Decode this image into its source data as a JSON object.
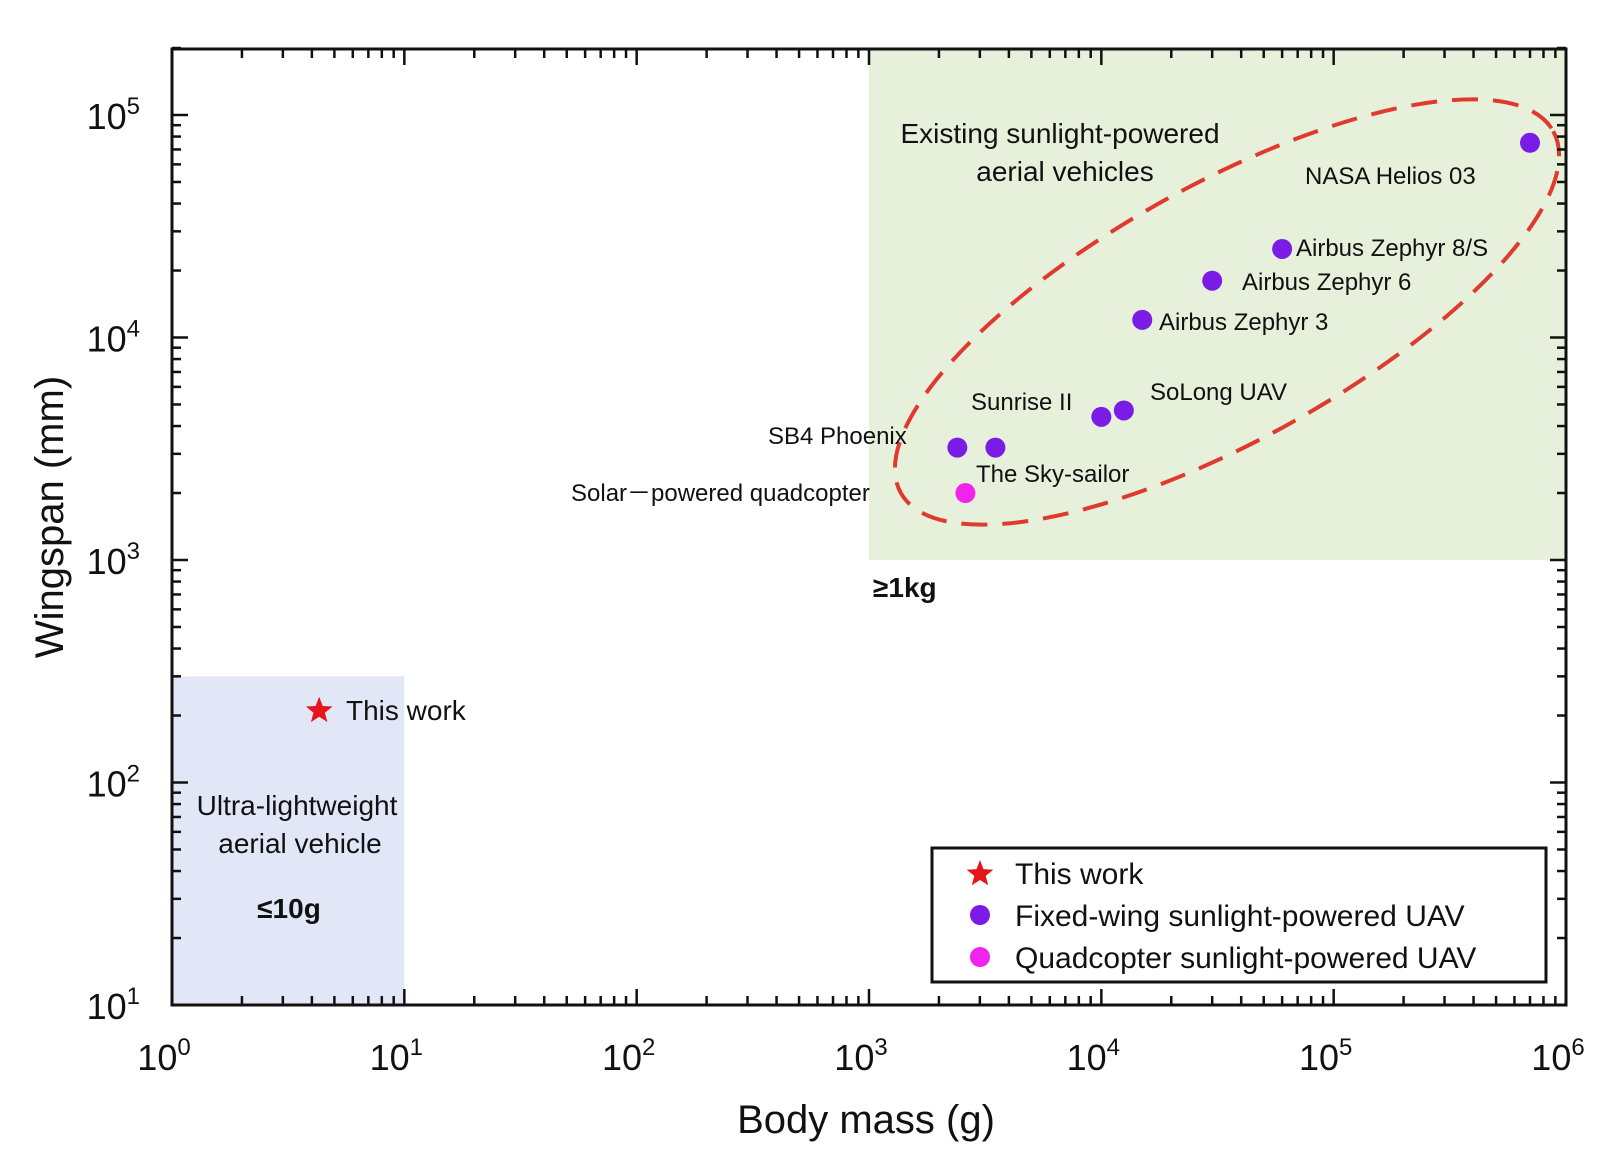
{
  "chart_data": {
    "type": "scatter",
    "x_scale": "log",
    "y_scale": "log",
    "xlim": [
      1,
      1000000
    ],
    "ylim": [
      10,
      200000
    ],
    "xlabel": "Body mass (g)",
    "ylabel": "Wingspan (mm)",
    "colors": {
      "this_work": "#e8141c",
      "fixed_wing": "#7a1ce6",
      "quadcopter": "#f024ea",
      "existing_region": "#e7f0da",
      "ultralight_region": "#e2e7f8",
      "ellipse": "#e03a2e"
    },
    "series": [
      {
        "name": "This work",
        "marker": "star",
        "points": [
          {
            "x": 4.3,
            "y": 210,
            "label": "This work"
          }
        ]
      },
      {
        "name": "Fixed-wing sunlight-powered UAV",
        "marker": "circle",
        "points": [
          {
            "x": 700000,
            "y": 75000,
            "label": "NASA Helios 03"
          },
          {
            "x": 60000,
            "y": 25000,
            "label": "Airbus Zephyr 8/S"
          },
          {
            "x": 30000,
            "y": 18000,
            "label": "Airbus Zephyr 6"
          },
          {
            "x": 15000,
            "y": 12000,
            "label": "Airbus Zephyr 3"
          },
          {
            "x": 12500,
            "y": 4700,
            "label": "SoLong UAV"
          },
          {
            "x": 10000,
            "y": 4400,
            "label": "Sunrise II"
          },
          {
            "x": 2400,
            "y": 3200,
            "label": "SB4 Phoenix"
          },
          {
            "x": 3500,
            "y": 3200,
            "label": "The Sky-sailor"
          }
        ]
      },
      {
        "name": "Quadcopter sunlight-powered UAV",
        "marker": "circle",
        "points": [
          {
            "x": 2600,
            "y": 2000,
            "label": "Solar－powered quadcopter"
          }
        ]
      }
    ],
    "regions": [
      {
        "name": "existing",
        "x": [
          1000,
          1000000
        ],
        "y": [
          1000,
          200000
        ],
        "title_lines": [
          "Existing sunlight-powered",
          "aerial vehicles"
        ],
        "threshold": "≥1kg"
      },
      {
        "name": "ultralight",
        "x": [
          1,
          10
        ],
        "y": [
          10,
          300
        ],
        "title_lines": [
          "Ultra-lightweight",
          "aerial vehicle"
        ],
        "threshold": "≤10g"
      }
    ],
    "legend": {
      "position": "bottom-right",
      "entries": [
        "This work",
        "Fixed-wing sunlight-powered UAV",
        "Quadcopter sunlight-powered UAV"
      ]
    },
    "x_ticks": [
      {
        "base": "10",
        "exp": "0"
      },
      {
        "base": "10",
        "exp": "1"
      },
      {
        "base": "10",
        "exp": "2"
      },
      {
        "base": "10",
        "exp": "3"
      },
      {
        "base": "10",
        "exp": "4"
      },
      {
        "base": "10",
        "exp": "5"
      },
      {
        "base": "10",
        "exp": "6"
      }
    ],
    "y_ticks": [
      {
        "base": "10",
        "exp": "1"
      },
      {
        "base": "10",
        "exp": "2"
      },
      {
        "base": "10",
        "exp": "3"
      },
      {
        "base": "10",
        "exp": "4"
      },
      {
        "base": "10",
        "exp": "5"
      }
    ]
  }
}
